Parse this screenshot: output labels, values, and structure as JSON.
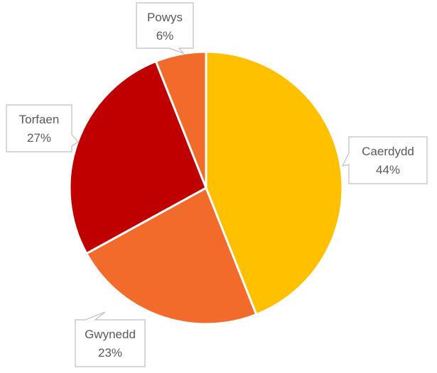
{
  "chart_data": {
    "type": "pie",
    "title": "",
    "slices": [
      {
        "name": "Caerdydd",
        "percent": 44,
        "color": "#FFC000"
      },
      {
        "name": "Gwynedd",
        "percent": 23,
        "color": "#F26B2B"
      },
      {
        "name": "Torfaen",
        "percent": 27,
        "color": "#C00000"
      },
      {
        "name": "Powys",
        "percent": 6,
        "color": "#F26B2B"
      }
    ],
    "label_style": "callout",
    "percent_labels": [
      "44%",
      "23%",
      "27%",
      "6%"
    ]
  }
}
